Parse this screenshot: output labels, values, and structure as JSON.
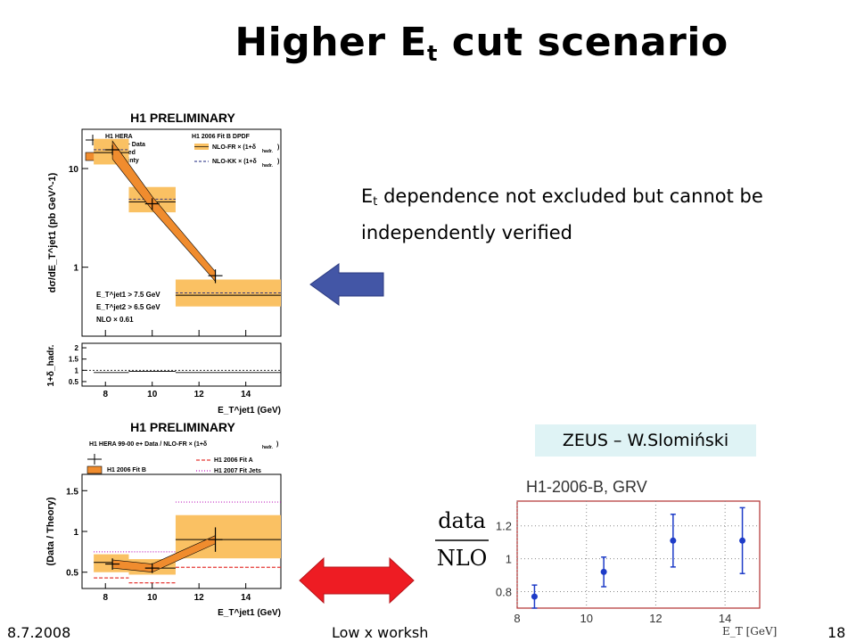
{
  "slide": {
    "title_main": "Higher E",
    "title_sub": "t",
    "title_rest": " cut scenario",
    "remark_pre": "E",
    "remark_sub": "t",
    "remark_rest": " dependence not excluded but cannot be independently verified",
    "zeus_label": "ZEUS – W.Slomiński",
    "footer_date": "8.7.2008",
    "footer_workshop": "Low x workshop",
    "footer_page": "18",
    "arrow_blue_color": "#4356a6",
    "arrow_red_color": "#ee1c23",
    "band_color": "#fac163",
    "line_color": "#f08c2e"
  },
  "chart_data": [
    {
      "type": "scatter",
      "title": "H1 PRELIMINARY",
      "xlabel": "E_T^jet1 (GeV)",
      "ylabel": "dσ/dE_T^jet1 (pb GeV^-1)",
      "yscale": "log",
      "xlim": [
        7,
        15.5
      ],
      "ylim": [
        0.2,
        25
      ],
      "xticks": [
        "8",
        "10",
        "12",
        "14"
      ],
      "yticks": [
        "1",
        "10"
      ],
      "legend_left": [
        "H1 HERA",
        "99-00 e+ Data",
        "correlated",
        "uncertainty"
      ],
      "legend_right_title": "H1 2006 Fit B DPDF",
      "legend_right": [
        "NLO-FR × (1+δ",
        "NLO-KK × (1+δ"
      ],
      "legend_right_sub": "hadr.",
      "cuts": [
        "E_T^jet1 > 7.5 GeV",
        "E_T^jet2 > 6.5 GeV",
        "NLO × 0.61"
      ],
      "bins": [
        {
          "lo": 7.5,
          "hi": 9,
          "nlo_fr": 14.5,
          "nlo_kk": 15.5,
          "band": [
            11,
            20
          ]
        },
        {
          "lo": 9,
          "hi": 11,
          "nlo_fr": 4.6,
          "nlo_kk": 4.9,
          "band": [
            3.6,
            6.5
          ]
        },
        {
          "lo": 11,
          "hi": 15.5,
          "nlo_fr": 0.52,
          "nlo_kk": 0.55,
          "band": [
            0.4,
            0.75
          ]
        }
      ],
      "data": [
        {
          "x": 8.3,
          "y": 15.5,
          "err": 1.8
        },
        {
          "x": 10.0,
          "y": 4.4,
          "err": 0.6
        },
        {
          "x": 12.7,
          "y": 0.82,
          "err": 0.13
        }
      ],
      "corr_band": [
        {
          "x": 8.3,
          "lo": 12.5,
          "hi": 19
        },
        {
          "x": 10.0,
          "lo": 3.8,
          "hi": 5.2
        },
        {
          "x": 12.7,
          "lo": 0.72,
          "hi": 0.9
        }
      ],
      "ratio_panel": {
        "ylabel": "1+δ_hadr.",
        "ylim": [
          0.3,
          2.2
        ],
        "yticks": [
          "0.5",
          "1",
          "1.5",
          "2"
        ],
        "solid": [
          {
            "lo": 7.5,
            "hi": 9,
            "y": 0.9
          },
          {
            "lo": 9,
            "hi": 11,
            "y": 0.95
          },
          {
            "lo": 11,
            "hi": 15.5,
            "y": 0.9
          }
        ],
        "dashed": 1.0
      }
    },
    {
      "type": "scatter",
      "title": "H1 PRELIMINARY",
      "subtitle": "H1 HERA 99-00 e+ Data / NLO-FR × (1+δ",
      "subtitle_sub": "hadr.",
      "xlabel": "E_T^jet1 (GeV)",
      "ylabel": "(Data / Theory)",
      "xlim": [
        7,
        15.5
      ],
      "ylim": [
        0.3,
        1.7
      ],
      "xticks": [
        "8",
        "10",
        "12",
        "14"
      ],
      "yticks": [
        "0.5",
        "1",
        "1.5"
      ],
      "legend": [
        "H1 2006 Fit B",
        "H1 2006 Fit A",
        "H1 2007 Fit Jets"
      ],
      "band": [
        {
          "lo": 7.5,
          "hi": 9,
          "y0": 0.5,
          "y1": 0.72
        },
        {
          "lo": 9,
          "hi": 11,
          "y0": 0.47,
          "y1": 0.66
        },
        {
          "lo": 11,
          "hi": 15.5,
          "y0": 0.67,
          "y1": 1.2
        }
      ],
      "central": [
        {
          "lo": 7.5,
          "hi": 9,
          "y": 0.62
        },
        {
          "lo": 9,
          "hi": 11,
          "y": 0.55
        },
        {
          "lo": 11,
          "hi": 15.5,
          "y": 0.9
        }
      ],
      "fit_a": [
        {
          "lo": 7.5,
          "hi": 9,
          "y": 0.43
        },
        {
          "lo": 9,
          "hi": 11,
          "y": 0.37
        },
        {
          "lo": 11,
          "hi": 15.5,
          "y": 0.56
        }
      ],
      "fit_jets": [
        {
          "lo": 7.5,
          "hi": 9,
          "y": 0.75
        },
        {
          "lo": 9,
          "hi": 11,
          "y": 0.75
        },
        {
          "lo": 11,
          "hi": 15.5,
          "y": 1.36
        }
      ],
      "data": [
        {
          "x": 8.3,
          "y": 0.6,
          "err": 0.07
        },
        {
          "x": 10.0,
          "y": 0.55,
          "err": 0.06
        },
        {
          "x": 12.7,
          "y": 0.9,
          "err": 0.15
        }
      ]
    },
    {
      "type": "scatter",
      "title": "H1-2006-B, GRV",
      "ylabel_num": "data",
      "ylabel_den": "NLO",
      "xlabel": "E_T [GeV]",
      "xlim": [
        8,
        15
      ],
      "ylim": [
        0.7,
        1.35
      ],
      "xticks": [
        "8",
        "10",
        "12",
        "14"
      ],
      "yticks": [
        "0.8",
        "1",
        "1.2"
      ],
      "data": [
        {
          "x": 8.5,
          "y": 0.77,
          "err": 0.07
        },
        {
          "x": 10.5,
          "y": 0.92,
          "err": 0.09
        },
        {
          "x": 12.5,
          "y": 1.11,
          "err": 0.16
        },
        {
          "x": 14.5,
          "y": 1.11,
          "err": 0.2
        }
      ]
    }
  ]
}
